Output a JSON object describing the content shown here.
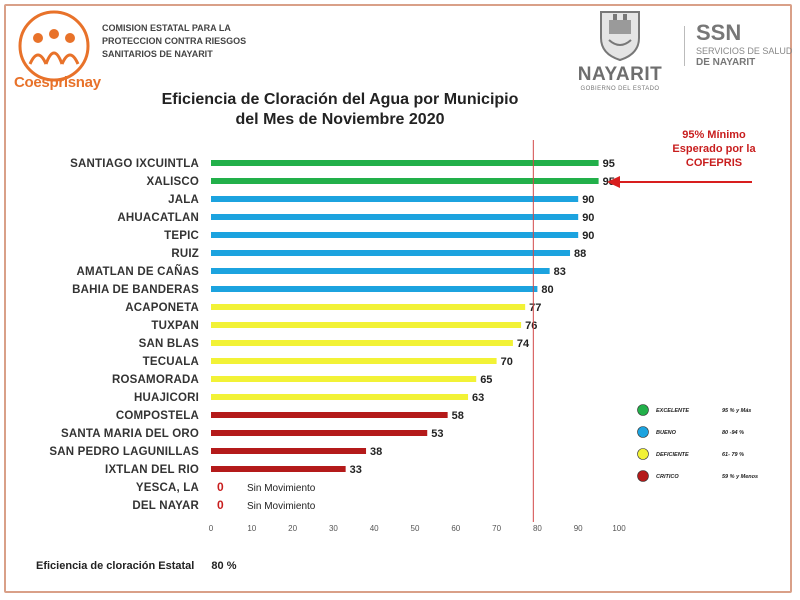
{
  "header": {
    "logo_text": "Coesprisnay",
    "org_lines": [
      "COMISION ESTATAL PARA LA",
      "PROTECCION CONTRA RIESGOS",
      "SANITARIOS DE NAYARIT"
    ],
    "state_name": "NAYARIT",
    "state_sub": "GOBIERNO DEL ESTADO",
    "ssn_name": "SSN",
    "ssn_sub_1": "SERVICIOS DE SALUD",
    "ssn_sub_2": "DE NAYARIT"
  },
  "colors": {
    "excelente": "#22b04a",
    "bueno": "#1ca3df",
    "deficiente": "#f2f236",
    "critico": "#b41a1a",
    "reference": "#d24848",
    "arrow": "#d81e1e"
  },
  "chart_data": {
    "type": "bar",
    "orientation": "horizontal",
    "title": [
      "Eficiencia de Cloración del Agua por Municipio",
      "del Mes de Noviembre  2020"
    ],
    "categories": [
      "SANTIAGO IXCUINTLA",
      "XALISCO",
      "JALA",
      "AHUACATLAN",
      "TEPIC",
      "RUIZ",
      "AMATLAN DE CAÑAS",
      "BAHIA DE BANDERAS",
      "ACAPONETA",
      "TUXPAN",
      "SAN BLAS",
      "TECUALA",
      "ROSAMORADA",
      "HUAJICORI",
      "COMPOSTELA",
      "SANTA MARIA DEL ORO",
      "SAN PEDRO LAGUNILLAS",
      "IXTLAN DEL RIO",
      "YESCA, LA",
      "DEL NAYAR"
    ],
    "values": [
      95,
      95,
      90,
      90,
      90,
      88,
      83,
      80,
      77,
      76,
      74,
      70,
      65,
      63,
      58,
      53,
      38,
      33,
      0,
      0
    ],
    "value_labels": [
      "95",
      "95",
      "90",
      "90",
      "90",
      "88",
      "83",
      "80",
      "77",
      "76",
      "74",
      "70",
      "65",
      "63",
      "58",
      "53",
      "38",
      "33",
      "0",
      "0"
    ],
    "levels": [
      "excelente",
      "excelente",
      "bueno",
      "bueno",
      "bueno",
      "bueno",
      "bueno",
      "bueno",
      "deficiente",
      "deficiente",
      "deficiente",
      "deficiente",
      "deficiente",
      "deficiente",
      "critico",
      "critico",
      "critico",
      "critico",
      "critico",
      "critico"
    ],
    "zero_note": "Sin Movimiento",
    "xlim": [
      0,
      100
    ],
    "xticks": [
      "0",
      "10",
      "20",
      "30",
      "40",
      "50",
      "60",
      "70",
      "80",
      "90",
      "100"
    ],
    "reference_line": 79,
    "reference_note": [
      "95% Mínimo",
      "Esperado por la",
      "COFEPRIS"
    ],
    "legend": [
      {
        "level": "excelente",
        "label": "EXCELENTE",
        "range": "95 % y Más"
      },
      {
        "level": "bueno",
        "label": "BUENO",
        "range": "80 -94 %"
      },
      {
        "level": "deficiente",
        "label": "DEFICIENTE",
        "range": "61-  79 %"
      },
      {
        "level": "critico",
        "label": "CRITICO",
        "range": "59 % y Menos"
      }
    ],
    "legend_position": "right",
    "grid": false
  },
  "footer": {
    "label": "Eficiencia de cloración  Estatal",
    "value": "80 %"
  }
}
